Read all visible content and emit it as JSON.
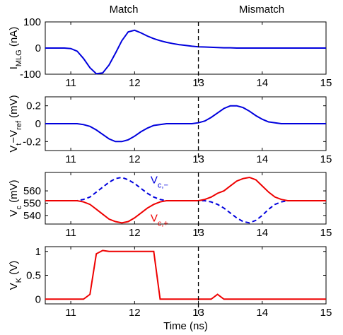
{
  "header": [
    "Match",
    "Mismatch"
  ],
  "chart_data": [
    {
      "type": "line",
      "ylabel": [
        {
          "t": "I"
        },
        {
          "t": "MLG",
          "sub": true
        },
        {
          "t": " (nA)"
        }
      ],
      "x": [
        10.6,
        10.7,
        10.8,
        10.9,
        11.0,
        11.1,
        11.2,
        11.3,
        11.4,
        11.5,
        11.6,
        11.7,
        11.8,
        11.9,
        12.0,
        12.1,
        12.2,
        12.3,
        12.4,
        12.5,
        12.6,
        12.7,
        12.8,
        12.9,
        13.0,
        13.1,
        13.2,
        13.3,
        13.4,
        13.5,
        13.6,
        13.7,
        13.8,
        13.9,
        14.0,
        14.1,
        14.2,
        14.3,
        14.4,
        14.5,
        14.6,
        14.7,
        14.8,
        14.9,
        15.0
      ],
      "xlim": [
        10.6,
        15
      ],
      "xticks": [
        11,
        12,
        13,
        14,
        15
      ],
      "ylim": [
        -100,
        100
      ],
      "yticks": [
        -100,
        0,
        100
      ],
      "vline": 13,
      "series": [
        {
          "color": "#0000dd",
          "dash": false,
          "values": [
            0,
            0,
            0,
            0,
            -2,
            -12,
            -40,
            -75,
            -98,
            -95,
            -65,
            -20,
            28,
            62,
            68,
            58,
            46,
            36,
            28,
            22,
            17,
            13,
            10,
            7,
            5,
            4,
            3,
            2,
            1,
            1,
            0,
            0,
            0,
            0,
            0,
            0,
            0,
            0,
            0,
            0,
            0,
            0,
            0,
            0,
            0
          ]
        }
      ]
    },
    {
      "type": "line",
      "ylabel": [
        {
          "t": "V"
        },
        {
          "t": "t",
          "sub": true
        },
        {
          "t": "−V"
        },
        {
          "t": "ref",
          "sub": true
        },
        {
          "t": " (mV)"
        }
      ],
      "x": [
        10.6,
        10.7,
        10.8,
        10.9,
        11.0,
        11.1,
        11.2,
        11.3,
        11.4,
        11.5,
        11.6,
        11.7,
        11.8,
        11.9,
        12.0,
        12.1,
        12.2,
        12.3,
        12.4,
        12.5,
        12.6,
        12.7,
        12.8,
        12.9,
        13.0,
        13.1,
        13.2,
        13.3,
        13.4,
        13.5,
        13.6,
        13.7,
        13.8,
        13.9,
        14.0,
        14.1,
        14.2,
        14.3,
        14.4,
        14.5,
        14.6,
        14.7,
        14.8,
        14.9,
        15.0
      ],
      "xlim": [
        10.6,
        15
      ],
      "xticks": [
        11,
        12,
        13,
        14,
        15
      ],
      "ylim": [
        -0.3,
        0.3
      ],
      "yticks": [
        -0.2,
        0,
        0.2
      ],
      "vline": 13,
      "series": [
        {
          "color": "#0000dd",
          "dash": false,
          "values": [
            0,
            0,
            0,
            0,
            0,
            0,
            -0.01,
            -0.03,
            -0.07,
            -0.12,
            -0.17,
            -0.2,
            -0.2,
            -0.18,
            -0.14,
            -0.09,
            -0.05,
            -0.02,
            -0.01,
            0,
            0,
            0,
            0,
            0,
            0.01,
            0.03,
            0.07,
            0.12,
            0.17,
            0.2,
            0.2,
            0.18,
            0.14,
            0.09,
            0.05,
            0.02,
            0.01,
            0,
            0,
            0,
            0,
            0,
            0,
            0,
            0
          ]
        }
      ]
    },
    {
      "type": "line",
      "ylabel": [
        {
          "t": "V"
        },
        {
          "t": "c",
          "sub": true
        },
        {
          "t": " (mV)"
        }
      ],
      "x": [
        10.6,
        10.7,
        10.8,
        10.9,
        11.0,
        11.1,
        11.2,
        11.3,
        11.4,
        11.5,
        11.6,
        11.7,
        11.8,
        11.9,
        12.0,
        12.1,
        12.2,
        12.3,
        12.4,
        12.5,
        12.6,
        12.7,
        12.8,
        12.9,
        13.0,
        13.1,
        13.2,
        13.3,
        13.4,
        13.5,
        13.6,
        13.7,
        13.8,
        13.9,
        14.0,
        14.1,
        14.2,
        14.3,
        14.4,
        14.5,
        14.6,
        14.7,
        14.8,
        14.9,
        15.0
      ],
      "xlim": [
        10.6,
        15
      ],
      "xticks": [
        11,
        12,
        13,
        14,
        15
      ],
      "ylim": [
        533,
        575
      ],
      "yticks": [
        540,
        550,
        560
      ],
      "vline": 13,
      "series": [
        {
          "name": [
            {
              "t": "V"
            },
            {
              "t": "c,−",
              "sub": true
            }
          ],
          "color": "#0000dd",
          "dash": true,
          "values": [
            552,
            552,
            552,
            552,
            552,
            552,
            553,
            555,
            559,
            563,
            567,
            570,
            571,
            569,
            566,
            562,
            558,
            555,
            553,
            552,
            552,
            552,
            552,
            552,
            552,
            552,
            551,
            549,
            546,
            542,
            538,
            535,
            534,
            536,
            540,
            545,
            549,
            551,
            552,
            552,
            552,
            552,
            552,
            552,
            552
          ]
        },
        {
          "name": [
            {
              "t": "V"
            },
            {
              "t": "c,+",
              "sub": true
            }
          ],
          "color": "#ee0000",
          "dash": false,
          "values": [
            552,
            552,
            552,
            552,
            552,
            552,
            551,
            549,
            545,
            541,
            537,
            535,
            534,
            535,
            538,
            542,
            546,
            549,
            551,
            552,
            552,
            552,
            552,
            552,
            552,
            553,
            555,
            558,
            560,
            564,
            568,
            570,
            571,
            569,
            564,
            559,
            555,
            553,
            552,
            552,
            552,
            552,
            552,
            552,
            552
          ]
        }
      ]
    },
    {
      "type": "line",
      "ylabel": [
        {
          "t": "V"
        },
        {
          "t": "K",
          "sub": true
        },
        {
          "t": " (V)"
        }
      ],
      "xlabel": "Time (ns)",
      "x": [
        10.6,
        10.7,
        10.8,
        10.9,
        11.0,
        11.1,
        11.2,
        11.3,
        11.4,
        11.5,
        11.6,
        11.7,
        11.8,
        11.9,
        12.0,
        12.1,
        12.2,
        12.3,
        12.4,
        12.5,
        12.6,
        12.7,
        12.8,
        12.9,
        13.0,
        13.1,
        13.2,
        13.3,
        13.4,
        13.5,
        13.6,
        13.7,
        13.8,
        13.9,
        14.0,
        14.1,
        14.2,
        14.3,
        14.4,
        14.5,
        14.6,
        14.7,
        14.8,
        14.9,
        15.0
      ],
      "xlim": [
        10.6,
        15
      ],
      "xticks": [
        11,
        12,
        13,
        14,
        15
      ],
      "ylim": [
        -0.1,
        1.1
      ],
      "yticks": [
        0,
        0.5,
        1
      ],
      "vline": 13,
      "series": [
        {
          "color": "#ee0000",
          "dash": false,
          "values": [
            0,
            0,
            0,
            0,
            0,
            0,
            0,
            0.1,
            0.95,
            1.02,
            1,
            1,
            1,
            1,
            1,
            1,
            1,
            1,
            0,
            0,
            0,
            0,
            0,
            0,
            0,
            0,
            0,
            0.1,
            0,
            0,
            0,
            0,
            0,
            0,
            0,
            0,
            0,
            0,
            0,
            0,
            0,
            0,
            0,
            0,
            0
          ]
        }
      ]
    }
  ]
}
